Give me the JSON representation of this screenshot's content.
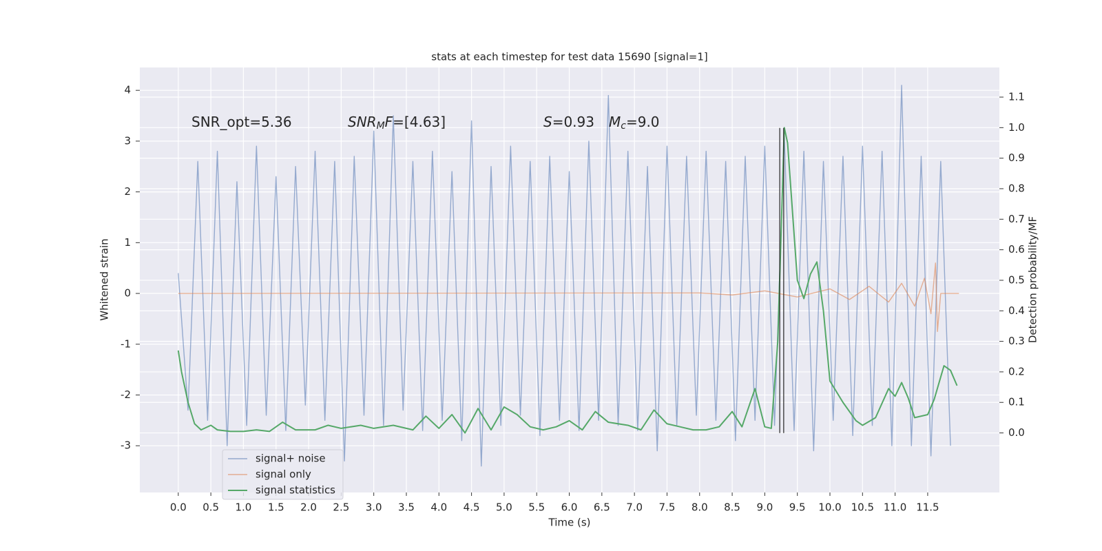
{
  "chart_data": {
    "type": "line",
    "title": "stats at each timestep for test data 15690 [signal=1]",
    "xlabel": "Time (s)",
    "ylabel": "Whitened strain",
    "y2label": "Detection probability/MF",
    "xlim": [
      -0.59,
      12.6
    ],
    "ylim": [
      -3.92,
      4.45
    ],
    "y2lim": [
      -0.195,
      1.197
    ],
    "xticks": [
      {
        "value": 0,
        "label": "0.0"
      },
      0.5,
      {
        "value": 1,
        "label": "1.0"
      },
      1.5,
      {
        "value": 2,
        "label": "2.0"
      },
      2.5,
      {
        "value": 3,
        "label": "3.0"
      },
      3.5,
      {
        "value": 4,
        "label": "4.0"
      },
      4.5,
      {
        "value": 5,
        "label": "5.0"
      },
      5.5,
      {
        "value": 6,
        "label": "6.0"
      },
      6.5,
      {
        "value": 7,
        "label": "7.0"
      },
      7.5,
      {
        "value": 8,
        "label": "8.0"
      },
      8.5,
      {
        "value": 9,
        "label": "9.0"
      },
      9.5,
      {
        "value": 10,
        "label": "10.0"
      },
      10.5,
      {
        "value": 11,
        "label": "11.0"
      },
      11.5
    ],
    "yticks": [
      -3,
      -2,
      -1,
      0,
      1,
      2,
      3,
      4
    ],
    "y2ticks": [
      {
        "value": 0,
        "label": "0.0"
      },
      0.1,
      0.2,
      0.3,
      0.4,
      0.5,
      0.6,
      0.7,
      0.8,
      0.9,
      {
        "value": 1,
        "label": "1.0"
      },
      1.1
    ],
    "grid": true,
    "legend": "lower left",
    "series": [
      {
        "name": "signal+ noise",
        "color": "#4c72b0",
        "x": [
          0,
          0.15,
          0.3,
          0.45,
          0.6,
          0.75,
          0.9,
          1.05,
          1.2,
          1.35,
          1.5,
          1.65,
          1.8,
          1.95,
          2.1,
          2.25,
          2.4,
          2.55,
          2.7,
          2.85,
          3,
          3.15,
          3.3,
          3.45,
          3.6,
          3.75,
          3.9,
          4.05,
          4.2,
          4.35,
          4.5,
          4.65,
          4.8,
          4.95,
          5.1,
          5.25,
          5.4,
          5.55,
          5.7,
          5.85,
          6,
          6.15,
          6.3,
          6.45,
          6.6,
          6.75,
          6.9,
          7.05,
          7.2,
          7.35,
          7.5,
          7.65,
          7.8,
          7.95,
          8.1,
          8.25,
          8.4,
          8.55,
          8.7,
          8.85,
          9,
          9.15,
          9.3,
          9.45,
          9.6,
          9.75,
          9.9,
          10.05,
          10.2,
          10.35,
          10.5,
          10.65,
          10.8,
          10.95,
          11.1,
          11.25,
          11.4,
          11.55,
          11.7,
          11.85
        ],
        "values": [
          0.4,
          -2.3,
          2.6,
          -2.5,
          2.8,
          -3.0,
          2.2,
          -2.6,
          2.9,
          -2.4,
          2.3,
          -2.7,
          2.5,
          -2.2,
          2.8,
          -2.5,
          2.6,
          -3.3,
          2.7,
          -2.4,
          3.2,
          -2.6,
          3.5,
          -2.3,
          2.6,
          -2.7,
          2.8,
          -2.5,
          2.4,
          -2.9,
          3.4,
          -3.4,
          2.5,
          -2.6,
          2.9,
          -2.4,
          2.6,
          -2.8,
          2.7,
          -2.5,
          2.4,
          -2.7,
          3.0,
          -2.5,
          3.9,
          -2.6,
          2.8,
          -2.7,
          2.5,
          -3.1,
          2.9,
          -2.6,
          2.7,
          -2.4,
          2.8,
          -2.5,
          2.6,
          -2.9,
          2.7,
          -2.5,
          2.9,
          -2.6,
          3.1,
          -2.7,
          2.8,
          -3.1,
          2.6,
          -2.5,
          2.7,
          -2.8,
          2.9,
          -2.6,
          2.8,
          -3.0,
          4.1,
          -3.0,
          2.7,
          -3.2,
          2.6,
          -3.0
        ]
      },
      {
        "name": "signal only",
        "color": "#dd8452",
        "x": [
          0,
          8.0,
          8.5,
          9.0,
          9.5,
          10.0,
          10.3,
          10.6,
          10.9,
          11.1,
          11.3,
          11.45,
          11.55,
          11.62,
          11.65,
          11.7,
          11.98
        ],
        "values": [
          0,
          0.01,
          -0.03,
          0.05,
          -0.07,
          0.09,
          -0.12,
          0.14,
          -0.17,
          0.2,
          -0.25,
          0.3,
          -0.4,
          0.6,
          -0.75,
          0,
          0
        ]
      },
      {
        "name": "signal statistics",
        "color": "#55a868",
        "axis": "y2",
        "x": [
          0,
          0.05,
          0.15,
          0.25,
          0.35,
          0.5,
          0.6,
          0.8,
          1.0,
          1.2,
          1.4,
          1.6,
          1.8,
          2.1,
          2.3,
          2.5,
          2.8,
          3.0,
          3.3,
          3.6,
          3.8,
          4.0,
          4.2,
          4.4,
          4.6,
          4.8,
          5.0,
          5.2,
          5.4,
          5.6,
          5.8,
          6.0,
          6.2,
          6.4,
          6.6,
          6.9,
          7.1,
          7.3,
          7.5,
          7.7,
          7.9,
          8.1,
          8.3,
          8.5,
          8.65,
          8.85,
          9.0,
          9.1,
          9.2,
          9.3,
          9.35,
          9.5,
          9.6,
          9.7,
          9.8,
          9.9,
          10.0,
          10.2,
          10.4,
          10.5,
          10.7,
          10.9,
          11.0,
          11.1,
          11.2,
          11.3,
          11.5,
          11.6,
          11.75,
          11.85,
          11.95
        ],
        "values": [
          0.27,
          0.2,
          0.1,
          0.03,
          0.01,
          0.025,
          0.01,
          0.005,
          0.005,
          0.01,
          0.005,
          0.035,
          0.01,
          0.01,
          0.025,
          0.015,
          0.025,
          0.015,
          0.025,
          0.01,
          0.055,
          0.015,
          0.06,
          0.0,
          0.08,
          0.01,
          0.085,
          0.06,
          0.02,
          0.01,
          0.02,
          0.04,
          0.01,
          0.07,
          0.035,
          0.025,
          0.01,
          0.075,
          0.03,
          0.02,
          0.01,
          0.01,
          0.02,
          0.07,
          0.02,
          0.145,
          0.02,
          0.015,
          0.3,
          1.0,
          0.95,
          0.5,
          0.44,
          0.52,
          0.56,
          0.4,
          0.17,
          0.1,
          0.04,
          0.025,
          0.05,
          0.145,
          0.12,
          0.165,
          0.115,
          0.05,
          0.06,
          0.11,
          0.22,
          0.205,
          0.155
        ]
      }
    ],
    "vlines": {
      "color": "#222222",
      "x": [
        9.23,
        9.29
      ],
      "ymin": -2.75,
      "ymax": 3.26
    },
    "annotations": [
      [
        {
          "text": "SNR_opt=5.36"
        }
      ],
      [
        {
          "text": "SNR",
          "italic": true
        },
        {
          "text": "M",
          "italic": true,
          "sub": true
        },
        {
          "text": "F",
          "italic": true
        },
        {
          "text": "=[4.63]"
        }
      ],
      [
        {
          "text": "S",
          "italic": true
        },
        {
          "text": "=0.93"
        }
      ],
      [
        {
          "text": "M",
          "italic": true
        },
        {
          "text": "c",
          "italic": true,
          "sub": true
        },
        {
          "text": "=9.0"
        }
      ]
    ]
  }
}
